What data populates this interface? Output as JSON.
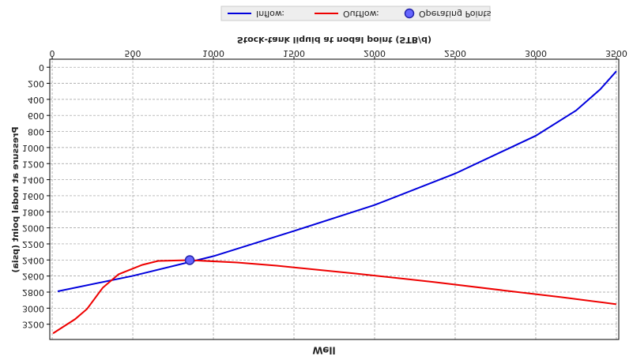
{
  "chart_data": {
    "type": "line",
    "title": "Well",
    "xlabel": "Stock-tank liquid at nodal point (STB/d)",
    "ylabel": "Pressure at nodal point (psia)",
    "xlim": [
      -15,
      3515
    ],
    "xticks": [
      0,
      500,
      1000,
      1500,
      2000,
      2500,
      3000,
      3500
    ],
    "ylim": [
      -100,
      3390
    ],
    "yticks": [
      0,
      200,
      400,
      600,
      800,
      1000,
      1200,
      1400,
      1600,
      1800,
      2000,
      2200,
      2400,
      2600,
      2800,
      3000,
      3200
    ],
    "grid": true,
    "legend": "top",
    "series": [
      {
        "name": "Inflow:",
        "color": "#0000dd",
        "style": "line",
        "x": [
          34,
          500,
          1000,
          1500,
          2000,
          2500,
          3000,
          3250,
          3400,
          3500
        ],
        "values": [
          2790,
          2598,
          2353,
          2039,
          1716,
          1324,
          853,
          539,
          275,
          49
        ]
      },
      {
        "name": "Outflow:",
        "color": "#ee0000",
        "style": "line",
        "x": [
          5,
          142,
          216,
          314,
          412,
          559,
          657,
          853,
          1147,
          1392,
          1882,
          2373,
          2863,
          3157,
          3500
        ],
        "values": [
          3314,
          3137,
          3010,
          2745,
          2578,
          2461,
          2412,
          2402,
          2431,
          2471,
          2569,
          2676,
          2794,
          2863,
          2951
        ]
      },
      {
        "name": "Operating Points",
        "color": "#6666ff",
        "style": "point",
        "x": [
          853
        ],
        "values": [
          2402
        ]
      }
    ]
  }
}
